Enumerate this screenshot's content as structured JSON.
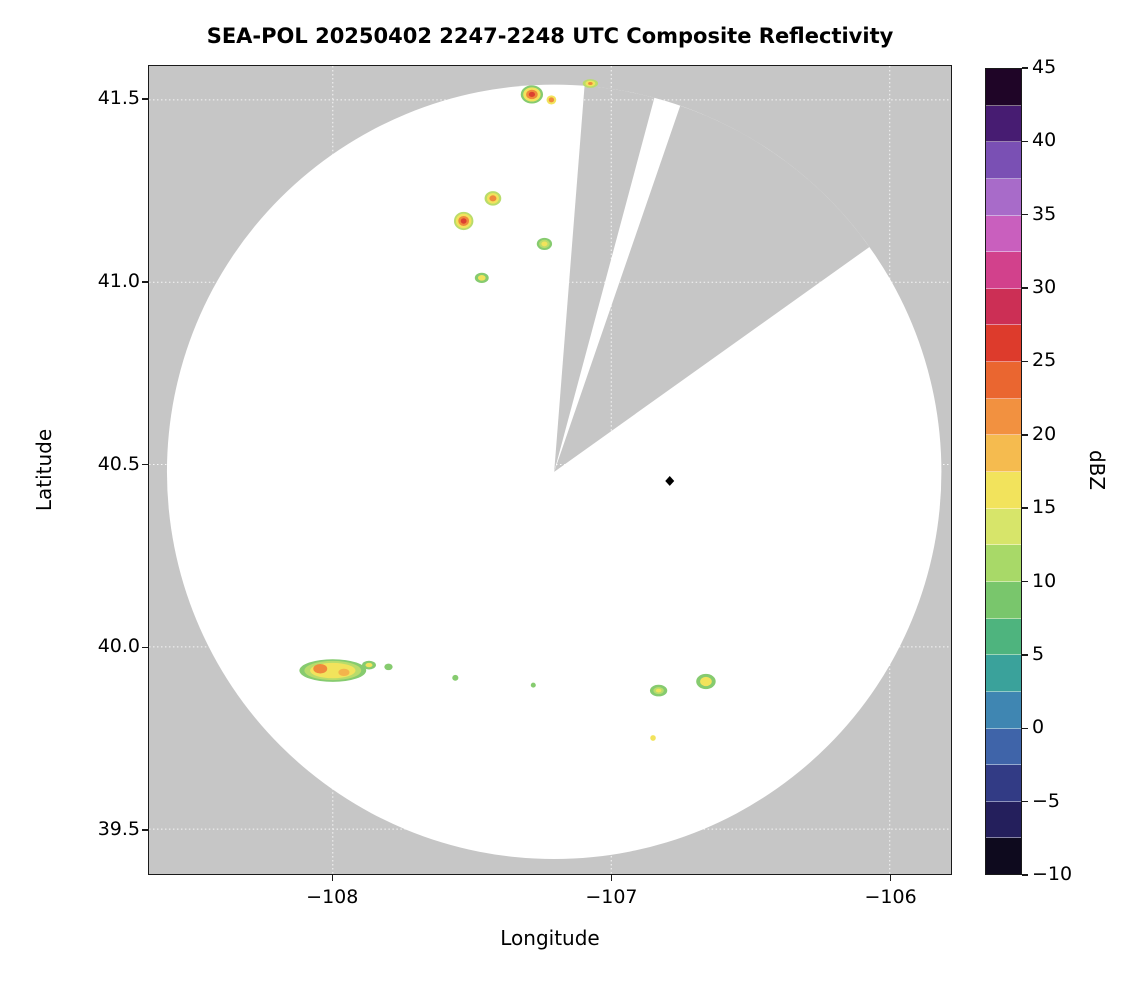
{
  "title": "SEA-POL 20250402 2247-2248 UTC Composite Reflectivity",
  "axes": {
    "xlabel": "Longitude",
    "ylabel": "Latitude",
    "x_tick_labels": [
      "−108",
      "−107",
      "−106"
    ],
    "y_tick_labels": [
      "41.5",
      "41.0",
      "40.5",
      "40.0",
      "39.5"
    ]
  },
  "colorbar": {
    "label": "dBZ",
    "range": [
      -10,
      45
    ],
    "tick_values": [
      45,
      40,
      35,
      30,
      25,
      20,
      15,
      10,
      5,
      0,
      -5,
      -10
    ],
    "tick_labels": [
      "45",
      "40",
      "35",
      "30",
      "25",
      "20",
      "15",
      "10",
      "5",
      "0",
      "−5",
      "−10"
    ],
    "segment_colors_top_to_bottom": [
      "#1f0527",
      "#471c72",
      "#7a50b4",
      "#a86bc9",
      "#c95fbe",
      "#d2418c",
      "#cc2f55",
      "#dd3b2c",
      "#ea6630",
      "#f29140",
      "#f5bb4f",
      "#f2e35c",
      "#d7e56a",
      "#a8d968",
      "#79c66c",
      "#4eb47e",
      "#3aa29b",
      "#3f86b2",
      "#3f64a9",
      "#323b85",
      "#241f5c",
      "#0e0a1e"
    ]
  },
  "colors": {
    "outside_gray": "#c6c6c6",
    "coverage_white": "#ffffff",
    "axis": "#1a1a1a",
    "grid": "rgba(255,255,255,0.85)",
    "marker": "#000000"
  },
  "chart_data": {
    "type": "heatmap",
    "title": "SEA-POL 20250402 2247-2248 UTC Composite Reflectivity",
    "xlabel": "Longitude",
    "ylabel": "Latitude",
    "xlim": [
      -108.66,
      -105.78
    ],
    "ylim": [
      39.377,
      41.593
    ],
    "x_tick_values": [
      -108,
      -107,
      -106
    ],
    "y_tick_values": [
      41.5,
      41.0,
      40.5,
      40.0,
      39.5
    ],
    "grid": true,
    "colorbar_label": "dBZ",
    "colorbar_range": [
      -10,
      45
    ],
    "radar": {
      "center_lon": -107.205,
      "center_lat": 40.48,
      "radius_deg_lat": 1.062,
      "blocked_sectors_az_deg": [
        [
          4.5,
          15
        ],
        [
          19,
          54.5
        ]
      ],
      "site_marker": {
        "lon": -106.79,
        "lat": 40.455
      }
    },
    "echoes": [
      {
        "lon": -107.285,
        "lat": 41.515,
        "w_deg": 0.08,
        "h_deg": 0.05,
        "max_dbz": 32,
        "layers": [
          [
            "#86cb6f",
            1
          ],
          [
            "#f2e35c",
            0.78
          ],
          [
            "#ef8a3c",
            0.52
          ],
          [
            "#dc4030",
            0.28
          ]
        ]
      },
      {
        "lon": -107.215,
        "lat": 41.5,
        "w_deg": 0.035,
        "h_deg": 0.025,
        "max_dbz": 25,
        "layers": [
          [
            "#f2e35c",
            1
          ],
          [
            "#ef8a3c",
            0.55
          ]
        ]
      },
      {
        "lon": -107.075,
        "lat": 41.545,
        "w_deg": 0.055,
        "h_deg": 0.024,
        "max_dbz": 24,
        "layers": [
          [
            "#b9dc6b",
            1
          ],
          [
            "#f2e35c",
            0.65
          ],
          [
            "#ef8a3c",
            0.3
          ]
        ]
      },
      {
        "lon": -107.53,
        "lat": 41.168,
        "w_deg": 0.07,
        "h_deg": 0.05,
        "max_dbz": 32,
        "layers": [
          [
            "#b9dc6b",
            1
          ],
          [
            "#f2e35c",
            0.8
          ],
          [
            "#ef8a3c",
            0.55
          ],
          [
            "#dc4030",
            0.3
          ]
        ]
      },
      {
        "lon": -107.425,
        "lat": 41.23,
        "w_deg": 0.06,
        "h_deg": 0.04,
        "max_dbz": 27,
        "layers": [
          [
            "#b9dc6b",
            1
          ],
          [
            "#f2e35c",
            0.72
          ],
          [
            "#ef8a3c",
            0.42
          ]
        ]
      },
      {
        "lon": -107.24,
        "lat": 41.105,
        "w_deg": 0.055,
        "h_deg": 0.033,
        "max_dbz": 18,
        "layers": [
          [
            "#86cb6f",
            1
          ],
          [
            "#b9dc6b",
            0.7
          ],
          [
            "#f2e35c",
            0.4
          ]
        ]
      },
      {
        "lon": -107.465,
        "lat": 41.012,
        "w_deg": 0.05,
        "h_deg": 0.028,
        "max_dbz": 20,
        "layers": [
          [
            "#86cb6f",
            1
          ],
          [
            "#f2e35c",
            0.55
          ]
        ]
      },
      {
        "lon": -108.0,
        "lat": 39.935,
        "w_deg": 0.24,
        "h_deg": 0.062,
        "max_dbz": 22,
        "layers": [
          [
            "#86cb6f",
            1
          ],
          [
            "#b9dc6b",
            0.85
          ],
          [
            "#f2e35c",
            0.68
          ]
        ]
      },
      {
        "lon": -108.045,
        "lat": 39.94,
        "w_deg": 0.05,
        "h_deg": 0.026,
        "max_dbz": 26,
        "layers": [
          [
            "#ef8a3c",
            1
          ]
        ]
      },
      {
        "lon": -107.96,
        "lat": 39.93,
        "w_deg": 0.04,
        "h_deg": 0.02,
        "max_dbz": 24,
        "layers": [
          [
            "#f4b44c",
            1
          ]
        ]
      },
      {
        "lon": -107.87,
        "lat": 39.95,
        "w_deg": 0.05,
        "h_deg": 0.024,
        "max_dbz": 18,
        "layers": [
          [
            "#86cb6f",
            1
          ],
          [
            "#f2e35c",
            0.5
          ]
        ]
      },
      {
        "lon": -107.8,
        "lat": 39.945,
        "w_deg": 0.03,
        "h_deg": 0.018,
        "max_dbz": 12,
        "layers": [
          [
            "#86cb6f",
            1
          ]
        ]
      },
      {
        "lon": -107.56,
        "lat": 39.915,
        "w_deg": 0.022,
        "h_deg": 0.016,
        "max_dbz": 10,
        "layers": [
          [
            "#86cb6f",
            1
          ]
        ]
      },
      {
        "lon": -107.28,
        "lat": 39.895,
        "w_deg": 0.018,
        "h_deg": 0.014,
        "max_dbz": 10,
        "layers": [
          [
            "#86cb6f",
            1
          ]
        ]
      },
      {
        "lon": -106.83,
        "lat": 39.88,
        "w_deg": 0.062,
        "h_deg": 0.032,
        "max_dbz": 18,
        "layers": [
          [
            "#86cb6f",
            1
          ],
          [
            "#b9dc6b",
            0.6
          ],
          [
            "#f2e35c",
            0.32
          ]
        ]
      },
      {
        "lon": -106.66,
        "lat": 39.905,
        "w_deg": 0.07,
        "h_deg": 0.042,
        "max_dbz": 20,
        "layers": [
          [
            "#86cb6f",
            1
          ],
          [
            "#f2e35c",
            0.6
          ]
        ]
      },
      {
        "lon": -106.85,
        "lat": 39.75,
        "w_deg": 0.02,
        "h_deg": 0.016,
        "max_dbz": 20,
        "layers": [
          [
            "#f2e35c",
            1
          ]
        ]
      }
    ]
  }
}
